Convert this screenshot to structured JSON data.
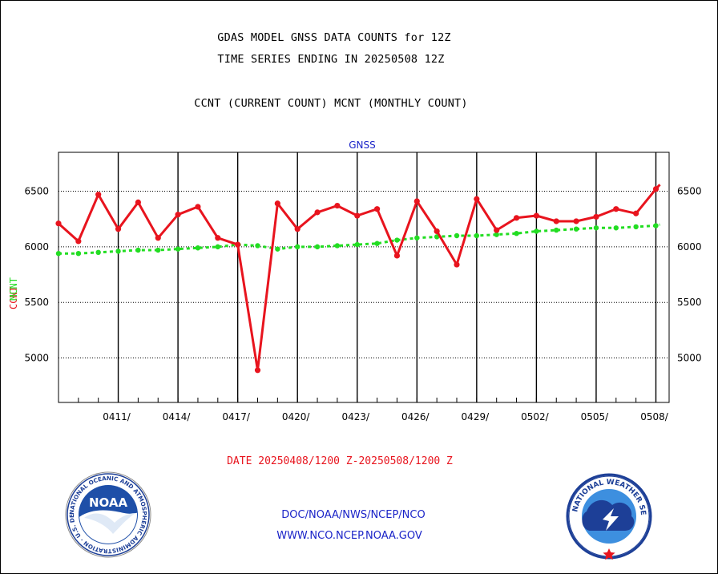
{
  "header": {
    "title_line1": "GDAS MODEL GNSS DATA COUNTS for 12Z",
    "title_line2": "TIME SERIES ENDING IN 20250508 12Z",
    "subtitle": "CCNT (CURRENT COUNT) MCNT (MONTHLY COUNT)"
  },
  "footer": {
    "date_range": "DATE 20250408/1200 Z-20250508/1200 Z",
    "org_path": "DOC/NOAA/NWS/NCEP/NCO",
    "website": "WWW.NCO.NCEP.NOAA.GOV"
  },
  "logos": {
    "noaa_label": "NOAA",
    "noaa_ring_text": "NATIONAL OCEANIC AND ATMOSPHERIC ADMINISTRATION · U.S. DEPARTMENT OF COMMERCE",
    "nws_ring_text": "NATIONAL WEATHER SERVICE"
  },
  "colors": {
    "ccnt": "#e8141e",
    "mcnt": "#22dd22",
    "footer": "#1a23c8",
    "grid": "#000000"
  },
  "chart_data": {
    "type": "line",
    "title": "GNSS",
    "ylabel_ccnt": "CCNT",
    "ylabel_mcnt": "MCNT",
    "xlabel": "DATE 20250408/1200 Z-20250508/1200 Z",
    "x_unit": "day index starting 20250408 (0 = 04/08, 30 = 05/08)",
    "xlim": [
      0,
      30.2
    ],
    "ylim": [
      4600,
      6850
    ],
    "y_ticks": [
      5000,
      5500,
      6000,
      6500
    ],
    "x_tick_labels": [
      {
        "label": "0411/",
        "x": 3
      },
      {
        "label": "0414/",
        "x": 6
      },
      {
        "label": "0417/",
        "x": 9
      },
      {
        "label": "0420/",
        "x": 12
      },
      {
        "label": "0423/",
        "x": 15
      },
      {
        "label": "0426/",
        "x": 18
      },
      {
        "label": "0429/",
        "x": 21
      },
      {
        "label": "0502/",
        "x": 24
      },
      {
        "label": "0505/",
        "x": 27
      },
      {
        "label": "0508/",
        "x": 30
      }
    ],
    "grid": true,
    "series": [
      {
        "name": "CCNT",
        "color": "#e8141e",
        "x": [
          0,
          1,
          2,
          3,
          4,
          5,
          6,
          7,
          8,
          9,
          10,
          11,
          12,
          13,
          14,
          15,
          16,
          17,
          18,
          19,
          20,
          21,
          22,
          23,
          24,
          25,
          26,
          27,
          28,
          29,
          30,
          30.2
        ],
        "values": [
          6210,
          6050,
          6470,
          6160,
          6400,
          6080,
          6290,
          6360,
          6080,
          6020,
          4890,
          6390,
          6160,
          6310,
          6370,
          6280,
          6340,
          5920,
          6410,
          6140,
          5840,
          6430,
          6150,
          6260,
          6280,
          6230,
          6230,
          6270,
          6340,
          6300,
          6520,
          6560
        ]
      },
      {
        "name": "MCNT",
        "color": "#22dd22",
        "x": [
          0,
          1,
          2,
          3,
          4,
          5,
          6,
          7,
          8,
          9,
          10,
          11,
          12,
          13,
          14,
          15,
          16,
          17,
          18,
          19,
          20,
          21,
          22,
          23,
          24,
          25,
          26,
          27,
          28,
          29,
          30,
          30.2
        ],
        "values": [
          5940,
          5940,
          5950,
          5960,
          5970,
          5970,
          5980,
          5990,
          6000,
          6020,
          6010,
          5980,
          6000,
          6000,
          6010,
          6020,
          6030,
          6060,
          6080,
          6090,
          6100,
          6100,
          6110,
          6120,
          6140,
          6150,
          6160,
          6170,
          6170,
          6180,
          6190,
          6200
        ]
      }
    ]
  }
}
